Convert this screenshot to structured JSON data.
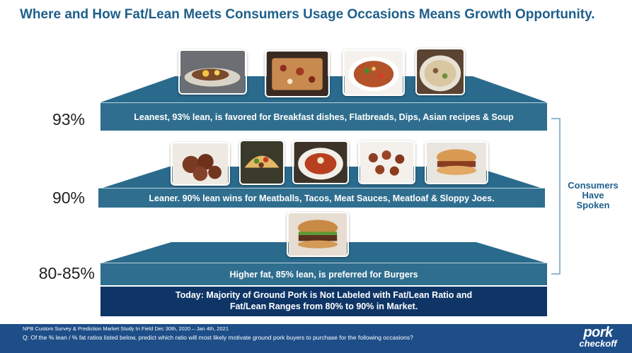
{
  "title": "Where and How Fat/Lean Meets Consumers Usage Occasions Means Growth Opportunity.",
  "tiers": [
    {
      "pct": "93%",
      "text": "Leanest, 93% lean, is favored for Breakfast dishes, Flatbreads, Dips, Asian recipes & Soup"
    },
    {
      "pct": "90%",
      "text": "Leaner. 90% lean wins for Meatballs, Tacos, Meat Sauces, Meatloaf & Sloppy Joes."
    },
    {
      "pct": "80-85%",
      "text": "Higher fat, 85% lean, is preferred for Burgers"
    }
  ],
  "today": {
    "line1": "Today: Majority of Ground Pork is Not Labeled with Fat/Lean Ratio and",
    "line2": "Fat/Lean Ranges from 80% to 90% in Market."
  },
  "consumers": {
    "line1": "Consumers",
    "line2": "Have",
    "line3": "Spoken"
  },
  "footer": {
    "line1": "NPB Custom Survey & Prediction Market Study In Field Dec 30th, 2020 – Jan 4th, 2021",
    "line2": "Q: Of the % lean / % fat ratios listed below, predict which ratio will most likely motivate ground pork buyers to purchase for the following occasions?"
  },
  "logo": {
    "line1": "pork",
    "line2": "checkoff"
  },
  "colors": {
    "band": "#2f6e8e",
    "trap": "#2a6a8c",
    "today": "#0e3566",
    "title": "#1f5f8b",
    "footer": "#1d4e88"
  },
  "photos": {
    "tier1": [
      "breakfast-dish-photo",
      "flatbread-photo",
      "asian-noodle-photo",
      "soup-photo"
    ],
    "tier2": [
      "meatballs-photo",
      "tacos-photo",
      "meat-sauce-photo",
      "meatloaf-bites-photo",
      "sloppy-joe-photo"
    ],
    "tier3": [
      "burger-photo"
    ]
  }
}
